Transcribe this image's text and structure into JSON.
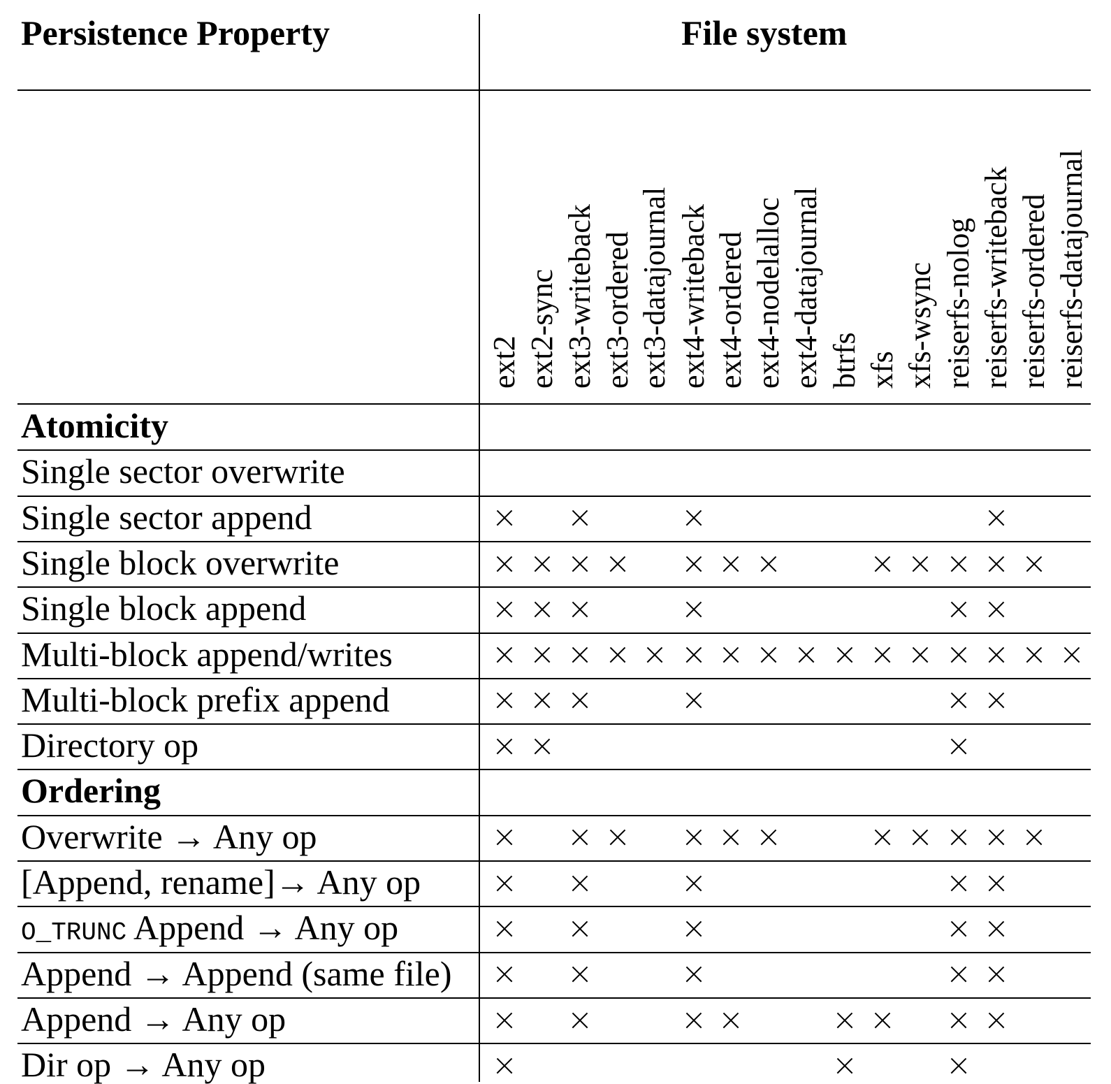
{
  "header": {
    "property_title": "Persistence Property",
    "fs_title": "File system"
  },
  "file_systems": [
    "ext2",
    "ext2-sync",
    "ext3-writeback",
    "ext3-ordered",
    "ext3-datajournal",
    "ext4-writeback",
    "ext4-ordered",
    "ext4-nodelalloc",
    "ext4-datajournal",
    "btrfs",
    "xfs",
    "xfs-wsync",
    "reiserfs-nolog",
    "reiserfs-writeback",
    "reiserfs-ordered",
    "reiserfs-datajournal"
  ],
  "mark_symbol": "×",
  "rows": [
    {
      "label": "Atomicity",
      "section": true,
      "marks": []
    },
    {
      "label": "Single sector overwrite",
      "marks": []
    },
    {
      "label": "Single sector append",
      "marks": [
        0,
        2,
        5,
        13
      ]
    },
    {
      "label": "Single block overwrite",
      "marks": [
        0,
        1,
        2,
        3,
        5,
        6,
        7,
        10,
        11,
        12,
        13,
        14
      ]
    },
    {
      "label": "Single block append",
      "marks": [
        0,
        1,
        2,
        5,
        12,
        13
      ]
    },
    {
      "label": "Multi-block append/writes",
      "marks": [
        0,
        1,
        2,
        3,
        4,
        5,
        6,
        7,
        8,
        9,
        10,
        11,
        12,
        13,
        14,
        15
      ]
    },
    {
      "label": "Multi-block prefix append",
      "marks": [
        0,
        1,
        2,
        5,
        12,
        13
      ]
    },
    {
      "label": "Directory op",
      "marks": [
        0,
        1,
        12
      ]
    },
    {
      "label": "Ordering",
      "section": true,
      "marks": []
    },
    {
      "label": "Overwrite → Any op",
      "marks": [
        0,
        2,
        3,
        5,
        6,
        7,
        10,
        11,
        12,
        13,
        14
      ]
    },
    {
      "label": "[Append, rename]→ Any op",
      "marks": [
        0,
        2,
        5,
        12,
        13
      ]
    },
    {
      "label": "Append → Any op",
      "prefix_mono": "O_TRUNC",
      "marks": [
        0,
        2,
        5,
        12,
        13
      ]
    },
    {
      "label": "Append → Append (same file)",
      "marks": [
        0,
        2,
        5,
        12,
        13
      ]
    },
    {
      "label": "Append → Any op",
      "marks": [
        0,
        2,
        5,
        6,
        9,
        10,
        12,
        13
      ]
    },
    {
      "label": "Dir op → Any op",
      "marks": [
        0,
        9,
        12
      ]
    }
  ]
}
